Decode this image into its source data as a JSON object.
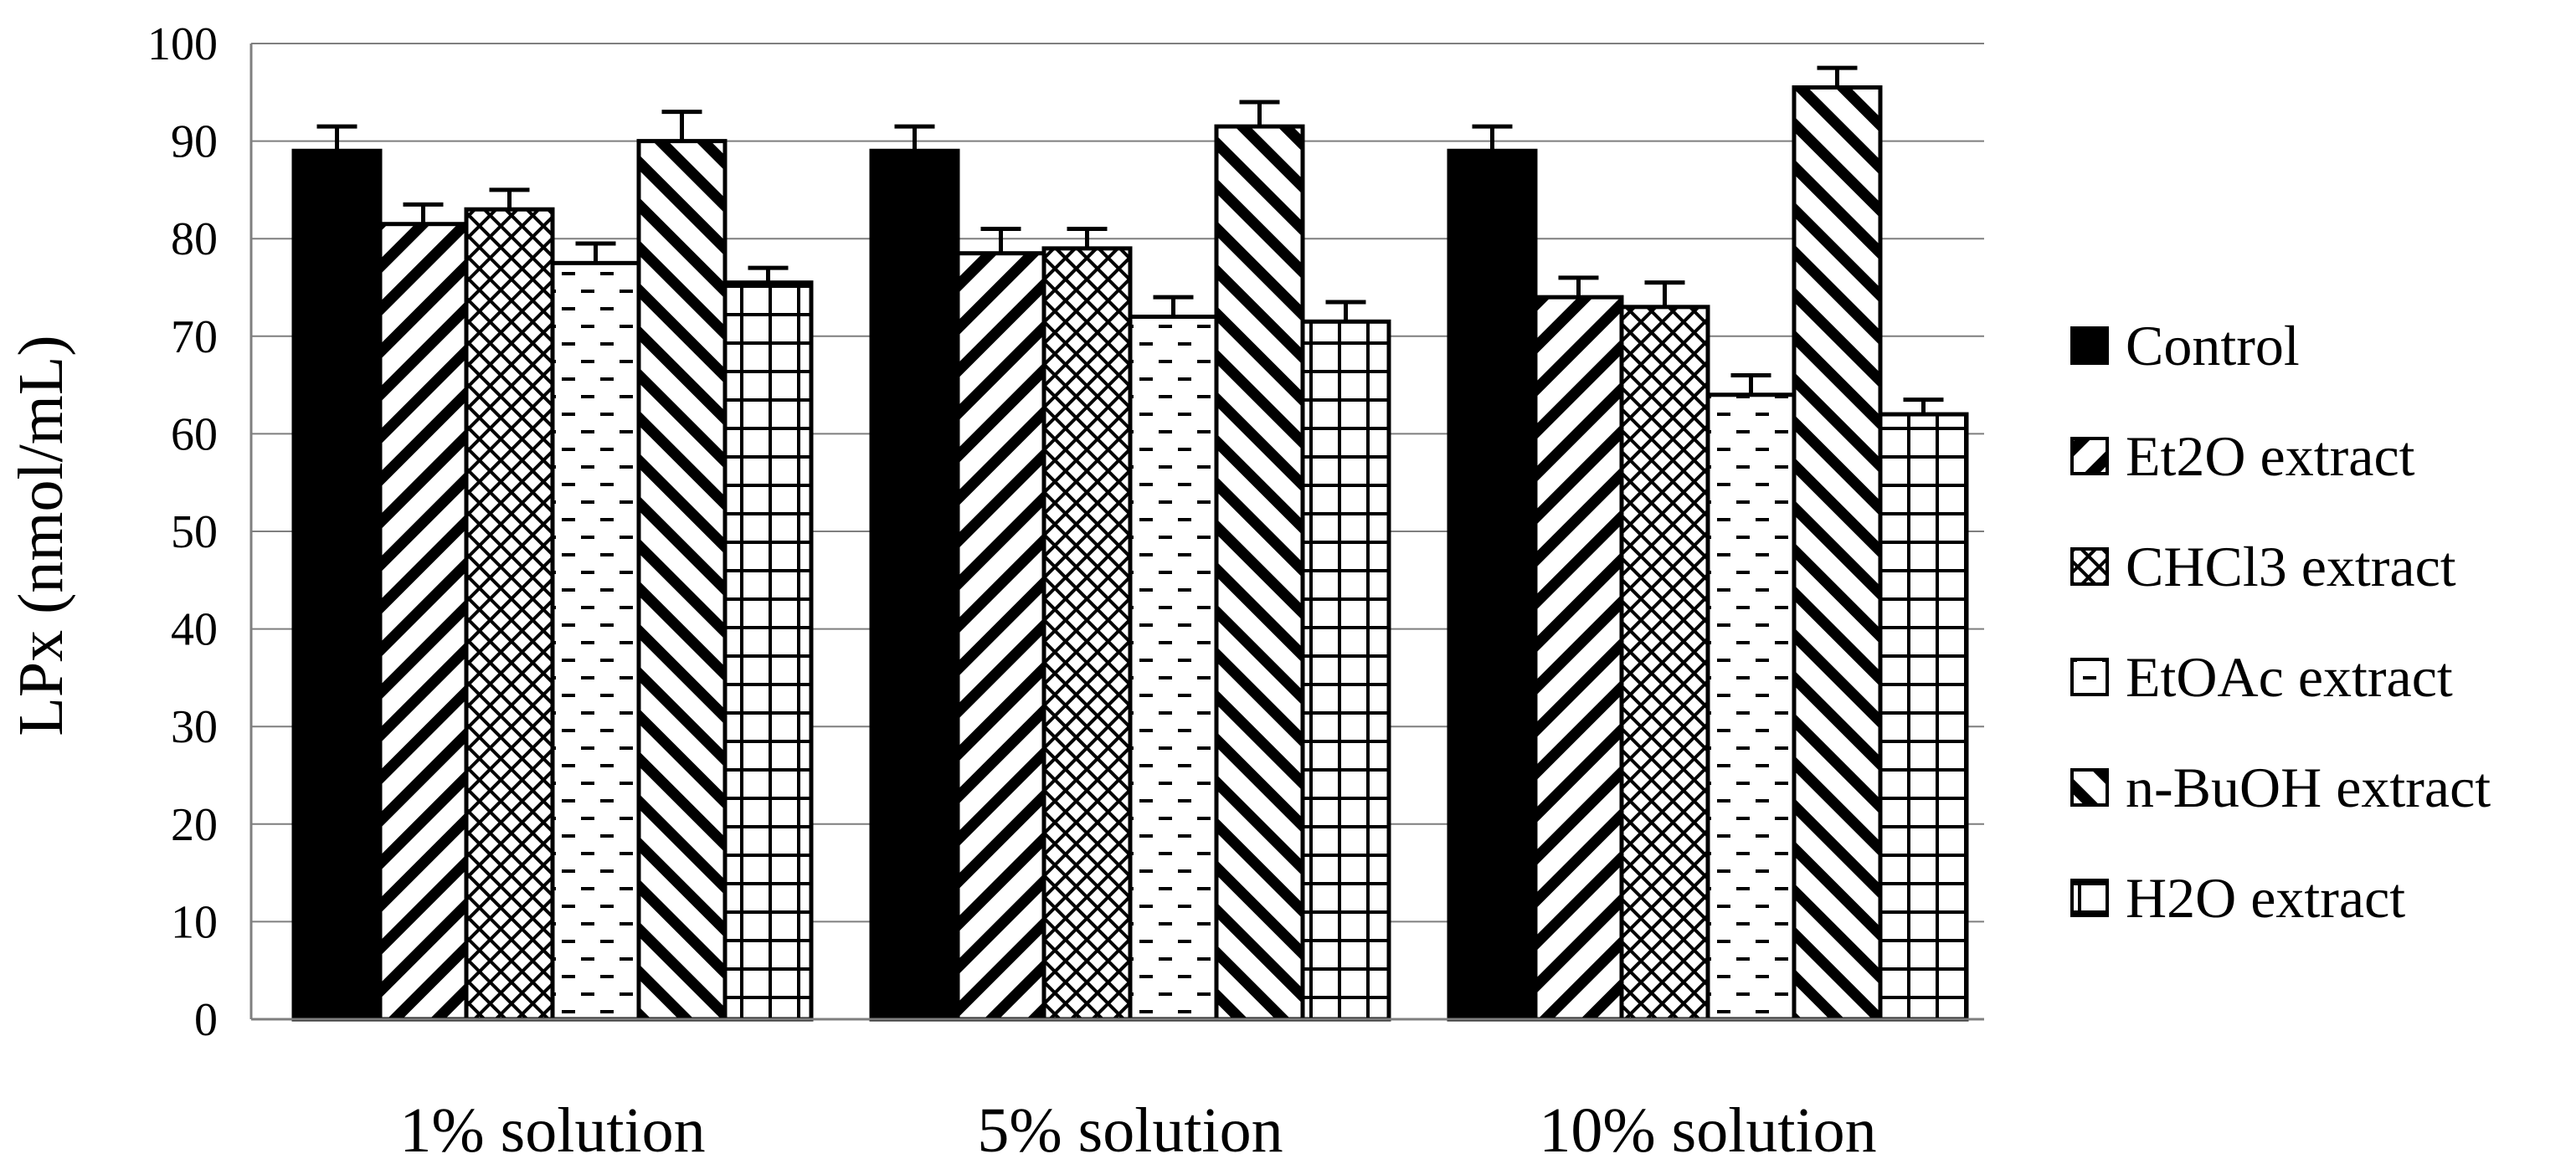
{
  "chart_data": {
    "type": "bar",
    "title": "",
    "xlabel": "",
    "ylabel": "LPx (nmol/mL)",
    "ylim": [
      0,
      100
    ],
    "yticks": [
      0,
      10,
      20,
      30,
      40,
      50,
      60,
      70,
      80,
      90,
      100
    ],
    "grid": true,
    "legend_position": "right",
    "categories": [
      "1% solution",
      "5% solution",
      "10% solution"
    ],
    "series": [
      {
        "name": "Control",
        "pattern": "solid",
        "values": [
          89,
          89,
          89
        ],
        "errors": [
          2.5,
          2.5,
          2.5
        ]
      },
      {
        "name": "Et2O extract",
        "pattern": "diag-back",
        "values": [
          81.5,
          78.5,
          74
        ],
        "errors": [
          2,
          2.5,
          2
        ]
      },
      {
        "name": "CHCl3 extract",
        "pattern": "crosshatch",
        "values": [
          83,
          79,
          73
        ],
        "errors": [
          2,
          2,
          2.5
        ]
      },
      {
        "name": "EtOAc extract",
        "pattern": "dashes",
        "values": [
          77.5,
          72,
          64
        ],
        "errors": [
          2,
          2,
          2
        ]
      },
      {
        "name": "n-BuOH extract",
        "pattern": "diag-fwd",
        "values": [
          90,
          91.5,
          95.5
        ],
        "errors": [
          3,
          2.5,
          2
        ]
      },
      {
        "name": "H2O extract",
        "pattern": "grid",
        "values": [
          75.5,
          71.5,
          62
        ],
        "errors": [
          1.5,
          2,
          1.5
        ]
      }
    ],
    "colors": {
      "bar_stroke": "#000000",
      "solid_fill": "#000000",
      "gridline": "#7f7f7f",
      "axis": "#7f7f7f"
    }
  }
}
